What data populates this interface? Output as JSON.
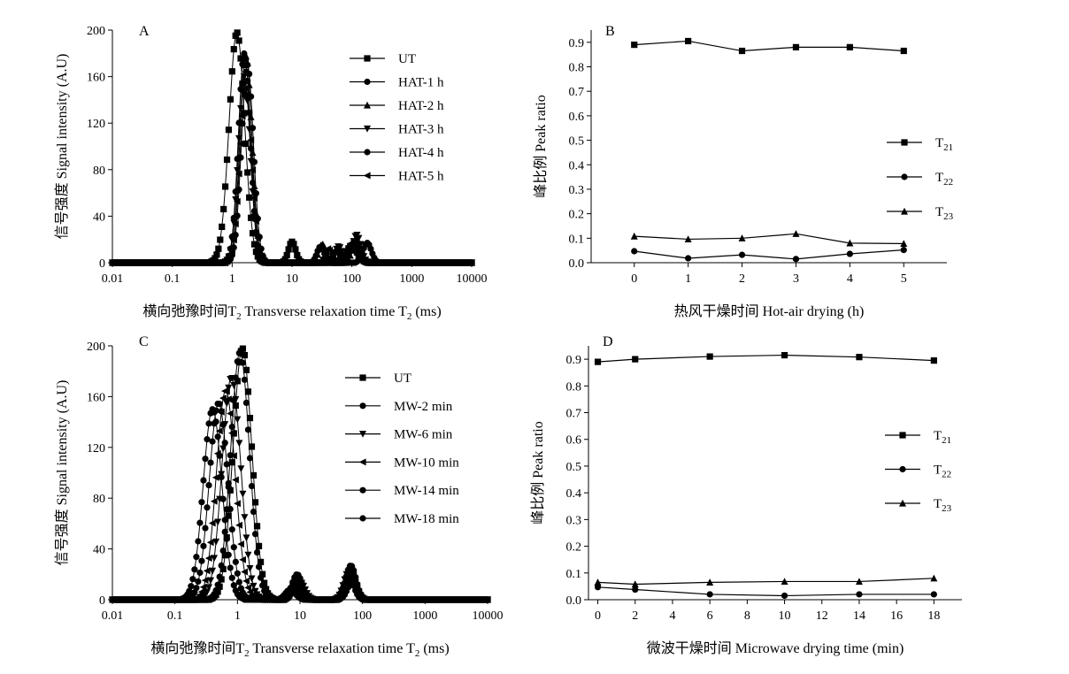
{
  "chart_data": [
    {
      "panel": "A",
      "type": "line",
      "x_scale": "log",
      "xlim": [
        0.01,
        10000
      ],
      "ylim": [
        0,
        200
      ],
      "x_ticks": [
        "0.01",
        "0.1",
        "1",
        "10",
        "100",
        "1000",
        "10000"
      ],
      "y_ticks": [
        "0",
        "40",
        "80",
        "120",
        "160",
        "200"
      ],
      "xlabel_cn": "横向弛豫时间T",
      "xlabel_sub": "2",
      "xlabel_en": " Transverse relaxation time T",
      "xlabel_en_sub": "2",
      "xlabel_unit": " (ms)",
      "ylabel": "信号强度 Signal intensity (A.U)",
      "legend_position": "top-right",
      "series": [
        {
          "name": "UT",
          "marker": "square",
          "peaks": [
            [
              1.2,
              198,
              0.13
            ],
            [
              10,
              18,
              0.06
            ],
            [
              100,
              15,
              0.09
            ]
          ]
        },
        {
          "name": "HAT-1 h",
          "marker": "circle",
          "peaks": [
            [
              1.6,
              180,
              0.1
            ],
            [
              30,
              14,
              0.06
            ],
            [
              180,
              17,
              0.07
            ]
          ]
        },
        {
          "name": "HAT-2 h",
          "marker": "triangle-up",
          "peaks": [
            [
              1.7,
              178,
              0.1
            ],
            [
              32,
              16,
              0.06
            ],
            [
              120,
              20,
              0.07
            ]
          ]
        },
        {
          "name": "HAT-3 h",
          "marker": "triangle-down",
          "peaks": [
            [
              1.6,
              160,
              0.1
            ],
            [
              60,
              14,
              0.06
            ],
            [
              120,
              24,
              0.07
            ]
          ]
        },
        {
          "name": "HAT-4 h",
          "marker": "circle",
          "peaks": [
            [
              1.8,
              170,
              0.1
            ],
            [
              55,
              10,
              0.06
            ],
            [
              110,
              18,
              0.07
            ]
          ]
        },
        {
          "name": "HAT-5 h",
          "marker": "triangle-left",
          "peaks": [
            [
              1.7,
              150,
              0.1
            ],
            [
              40,
              12,
              0.06
            ],
            [
              100,
              14,
              0.07
            ]
          ]
        }
      ]
    },
    {
      "panel": "B",
      "type": "line",
      "xlim": [
        -0.8,
        5.8
      ],
      "ylim": [
        0,
        0.95
      ],
      "x_ticks": [
        "0",
        "1",
        "2",
        "3",
        "4",
        "5"
      ],
      "y_ticks": [
        "0.0",
        "0.1",
        "0.2",
        "0.3",
        "0.4",
        "0.5",
        "0.6",
        "0.7",
        "0.8",
        "0.9"
      ],
      "xlabel": "热风干燥时间 Hot-air drying (h)",
      "ylabel": "峰比例 Peak ratio",
      "legend_position": "right",
      "x": [
        0,
        1,
        2,
        3,
        4,
        5
      ],
      "series": [
        {
          "name": "T",
          "sub": "21",
          "marker": "square",
          "values": [
            0.89,
            0.905,
            0.865,
            0.88,
            0.88,
            0.865
          ]
        },
        {
          "name": "T",
          "sub": "22",
          "marker": "circle",
          "values": [
            0.047,
            0.018,
            0.032,
            0.015,
            0.036,
            0.052
          ]
        },
        {
          "name": "T",
          "sub": "23",
          "marker": "triangle-up",
          "values": [
            0.108,
            0.096,
            0.1,
            0.118,
            0.08,
            0.078
          ]
        }
      ]
    },
    {
      "panel": "C",
      "type": "line",
      "x_scale": "log",
      "xlim": [
        0.01,
        10000
      ],
      "ylim": [
        0,
        200
      ],
      "x_ticks": [
        "0.01",
        "0.1",
        "1",
        "10",
        "100",
        "1000",
        "10000"
      ],
      "y_ticks": [
        "0",
        "40",
        "80",
        "120",
        "160",
        "200"
      ],
      "xlabel_cn": "横向弛豫时间T",
      "xlabel_sub": "2",
      "xlabel_en": " Transverse relaxation time T",
      "xlabel_en_sub": "2",
      "xlabel_unit": " (ms)",
      "ylabel": "信号强度 Signal intensity (A.U)",
      "legend_position": "top-right",
      "series": [
        {
          "name": "UT",
          "marker": "square",
          "peaks": [
            [
              1.2,
              198,
              0.15
            ],
            [
              9,
              18,
              0.08
            ],
            [
              65,
              25,
              0.08
            ]
          ]
        },
        {
          "name": "MW-2 min",
          "marker": "circle",
          "peaks": [
            [
              1.1,
              195,
              0.15
            ],
            [
              9,
              20,
              0.08
            ],
            [
              65,
              27,
              0.08
            ]
          ]
        },
        {
          "name": "MW-6 min",
          "marker": "triangle-down",
          "peaks": [
            [
              0.8,
              175,
              0.15
            ],
            [
              10,
              14,
              0.08
            ],
            [
              60,
              22,
              0.08
            ]
          ]
        },
        {
          "name": "MW-10 min",
          "marker": "triangle-left",
          "peaks": [
            [
              0.65,
              165,
              0.15
            ],
            [
              9,
              12,
              0.08
            ],
            [
              65,
              20,
              0.08
            ]
          ]
        },
        {
          "name": "MW-14 min",
          "marker": "circle",
          "peaks": [
            [
              0.5,
              155,
              0.15
            ],
            [
              8,
              10,
              0.08
            ],
            [
              60,
              18,
              0.08
            ]
          ]
        },
        {
          "name": "MW-18 min",
          "marker": "circle",
          "peaks": [
            [
              0.4,
              150,
              0.15
            ],
            [
              7,
              8,
              0.08
            ],
            [
              70,
              15,
              0.08
            ]
          ]
        }
      ]
    },
    {
      "panel": "D",
      "type": "line",
      "xlim": [
        -0.5,
        19.5
      ],
      "ylim": [
        0,
        0.95
      ],
      "x_ticks": [
        "0",
        "2",
        "4",
        "6",
        "8",
        "10",
        "12",
        "14",
        "16",
        "18"
      ],
      "y_ticks": [
        "0.0",
        "0.1",
        "0.2",
        "0.3",
        "0.4",
        "0.5",
        "0.6",
        "0.7",
        "0.8",
        "0.9"
      ],
      "xlabel": "微波干燥时间 Microwave drying time (min)",
      "ylabel": "峰比例 Peak ratio",
      "legend_position": "right",
      "x": [
        0,
        2,
        6,
        10,
        14,
        18
      ],
      "series": [
        {
          "name": "T",
          "sub": "21",
          "marker": "square",
          "values": [
            0.89,
            0.9,
            0.91,
            0.915,
            0.908,
            0.895
          ]
        },
        {
          "name": "T",
          "sub": "22",
          "marker": "circle",
          "values": [
            0.047,
            0.038,
            0.02,
            0.015,
            0.02,
            0.02
          ]
        },
        {
          "name": "T",
          "sub": "23",
          "marker": "triangle-up",
          "values": [
            0.065,
            0.058,
            0.065,
            0.068,
            0.068,
            0.08
          ]
        }
      ]
    }
  ]
}
